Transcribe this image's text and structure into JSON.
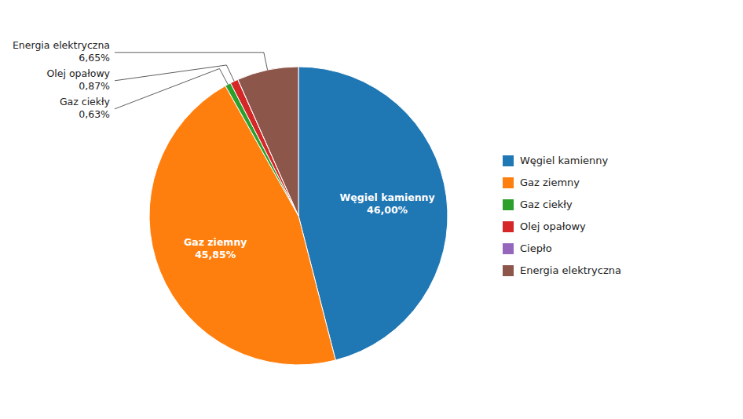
{
  "chart_data": {
    "type": "pie",
    "categories": [
      "Węgiel kamienny",
      "Gaz ziemny",
      "Gaz ciekły",
      "Olej opałowy",
      "Ciepło",
      "Energia elektryczna"
    ],
    "values": [
      46.0,
      45.85,
      0.63,
      0.87,
      0.0,
      6.65
    ],
    "value_labels": [
      "46,00%",
      "45,85%",
      "0,63%",
      "0,87%",
      null,
      "6,65%"
    ],
    "data_labels": true,
    "legend": "right"
  }
}
